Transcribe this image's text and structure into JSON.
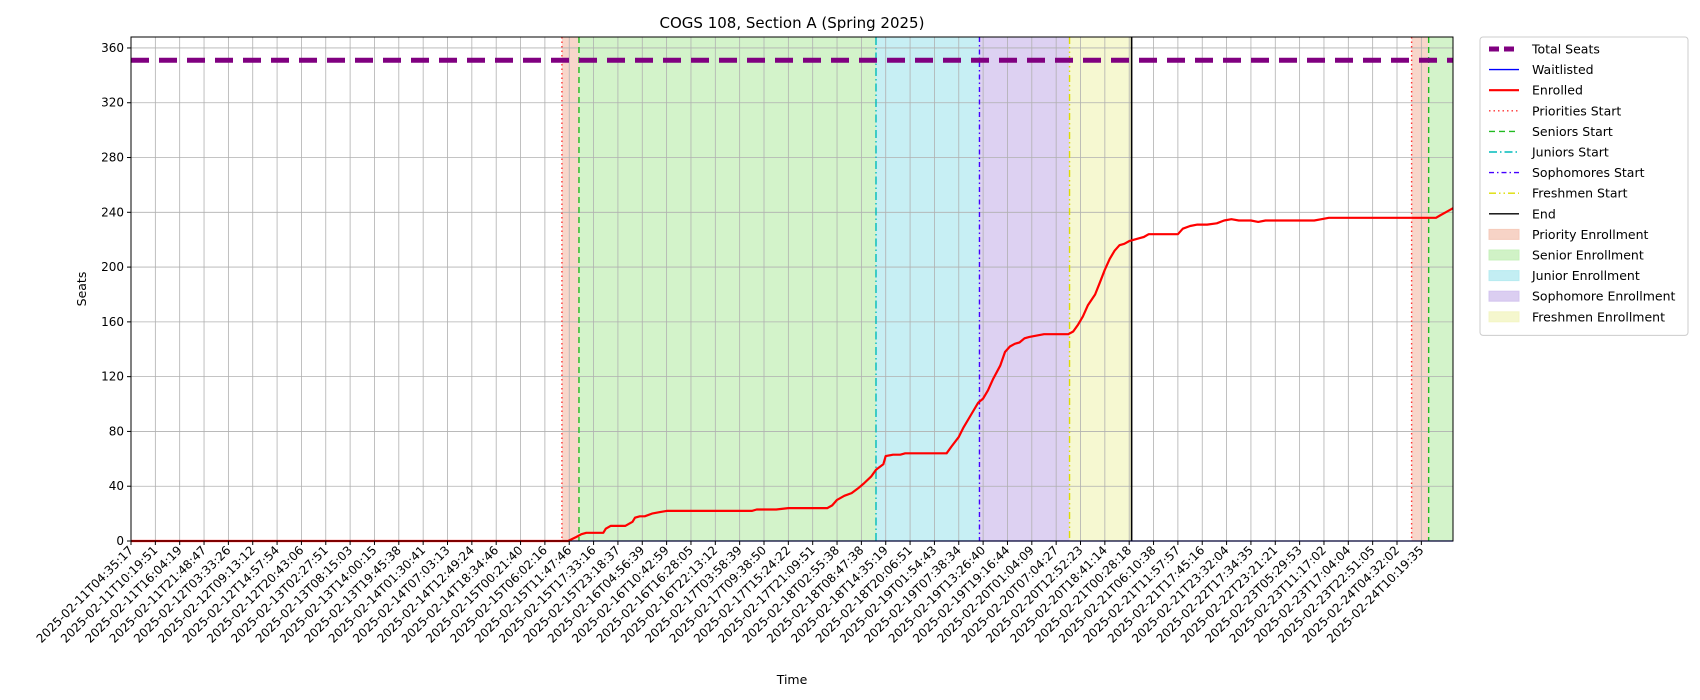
{
  "chart_data": {
    "type": "line",
    "title": "COGS 108, Section A (Spring 2025)",
    "xlabel": "Time",
    "ylabel": "Seats",
    "ylim": [
      0,
      368
    ],
    "yticks": [
      0,
      40,
      80,
      120,
      160,
      200,
      240,
      280,
      320,
      360
    ],
    "grid": true,
    "legend_position": "outside-right",
    "x_tick_labels": [
      "2025-02-11T04:35:17",
      "2025-02-11T10:19:51",
      "2025-02-11T16:04:19",
      "2025-02-11T21:48:47",
      "2025-02-12T03:33:26",
      "2025-02-12T09:13:12",
      "2025-02-12T14:57:54",
      "2025-02-12T20:43:06",
      "2025-02-13T02:27:51",
      "2025-02-13T08:15:03",
      "2025-02-13T14:00:15",
      "2025-02-13T19:45:38",
      "2025-02-14T01:30:41",
      "2025-02-14T07:03:13",
      "2025-02-14T12:49:24",
      "2025-02-14T18:34:46",
      "2025-02-15T00:21:40",
      "2025-02-15T06:02:16",
      "2025-02-15T11:47:46",
      "2025-02-15T17:33:16",
      "2025-02-15T23:18:37",
      "2025-02-16T04:56:39",
      "2025-02-16T10:42:59",
      "2025-02-16T16:28:05",
      "2025-02-16T22:13:12",
      "2025-02-17T03:58:39",
      "2025-02-17T09:38:50",
      "2025-02-17T15:24:22",
      "2025-02-17T21:09:51",
      "2025-02-18T02:55:38",
      "2025-02-18T08:47:38",
      "2025-02-18T14:35:19",
      "2025-02-18T20:06:51",
      "2025-02-19T01:54:43",
      "2025-02-19T07:38:34",
      "2025-02-19T13:26:40",
      "2025-02-19T19:16:44",
      "2025-02-20T01:04:09",
      "2025-02-20T07:04:27",
      "2025-02-20T12:52:23",
      "2025-02-20T18:41:14",
      "2025-02-21T00:28:18",
      "2025-02-21T06:10:38",
      "2025-02-21T11:57:57",
      "2025-02-21T17:45:16",
      "2025-02-21T23:32:04",
      "2025-02-22T17:34:35",
      "2025-02-22T23:21:21",
      "2025-02-23T05:29:53",
      "2025-02-23T11:17:02",
      "2025-02-23T17:04:04",
      "2025-02-23T22:51:05",
      "2025-02-24T04:32:02",
      "2025-02-24T10:19:35"
    ],
    "x_count": 54.3,
    "series": [
      {
        "name": "Total Seats",
        "style": "dashed",
        "color": "#800080",
        "points": [
          [
            0,
            351
          ],
          [
            54.3,
            351
          ]
        ]
      },
      {
        "name": "Waitlisted",
        "style": "solid",
        "color": "#0000ff",
        "points": [
          [
            0,
            0
          ],
          [
            54.3,
            0
          ]
        ]
      },
      {
        "name": "Enrolled",
        "style": "solid",
        "color": "#ff0000",
        "points": [
          [
            0,
            0
          ],
          [
            17.95,
            0
          ],
          [
            18.3,
            3
          ],
          [
            18.5,
            5
          ],
          [
            18.7,
            6
          ],
          [
            19,
            6
          ],
          [
            19.4,
            6
          ],
          [
            19.5,
            9
          ],
          [
            19.7,
            11
          ],
          [
            20,
            11
          ],
          [
            20.3,
            11
          ],
          [
            20.6,
            14
          ],
          [
            20.7,
            17
          ],
          [
            20.9,
            18
          ],
          [
            21.1,
            18
          ],
          [
            21.4,
            20
          ],
          [
            21.7,
            21
          ],
          [
            22,
            22
          ],
          [
            23,
            22
          ],
          [
            24,
            22
          ],
          [
            25,
            22
          ],
          [
            25.5,
            22
          ],
          [
            25.7,
            23
          ],
          [
            26,
            23
          ],
          [
            26.5,
            23
          ],
          [
            27,
            24
          ],
          [
            28,
            24
          ],
          [
            28.6,
            24
          ],
          [
            28.8,
            26
          ],
          [
            29,
            30
          ],
          [
            29.3,
            33
          ],
          [
            29.6,
            35
          ],
          [
            29.9,
            39
          ],
          [
            30.1,
            42
          ],
          [
            30.4,
            47
          ],
          [
            30.6,
            52
          ],
          [
            30.9,
            56
          ],
          [
            31,
            62
          ],
          [
            31.3,
            63
          ],
          [
            31.6,
            63
          ],
          [
            31.8,
            64
          ],
          [
            32.5,
            64
          ],
          [
            33,
            64
          ],
          [
            33.5,
            64
          ],
          [
            33.7,
            69
          ],
          [
            34,
            76
          ],
          [
            34.2,
            83
          ],
          [
            34.5,
            92
          ],
          [
            34.8,
            101
          ],
          [
            35,
            104
          ],
          [
            35.2,
            110
          ],
          [
            35.4,
            118
          ],
          [
            35.7,
            128
          ],
          [
            35.9,
            138
          ],
          [
            36.1,
            142
          ],
          [
            36.3,
            144
          ],
          [
            36.5,
            145
          ],
          [
            36.7,
            148
          ],
          [
            36.9,
            149
          ],
          [
            37.2,
            150
          ],
          [
            37.5,
            151
          ],
          [
            38,
            151
          ],
          [
            38.5,
            151
          ],
          [
            38.7,
            153
          ],
          [
            38.9,
            158
          ],
          [
            39.1,
            164
          ],
          [
            39.3,
            172
          ],
          [
            39.6,
            180
          ],
          [
            39.8,
            189
          ],
          [
            40,
            198
          ],
          [
            40.2,
            206
          ],
          [
            40.4,
            212
          ],
          [
            40.6,
            216
          ],
          [
            40.8,
            217
          ],
          [
            41,
            219
          ],
          [
            41.2,
            220
          ],
          [
            41.4,
            221
          ],
          [
            41.6,
            222
          ],
          [
            41.8,
            224
          ],
          [
            42.1,
            224
          ],
          [
            42.5,
            224
          ],
          [
            42.8,
            224
          ],
          [
            43,
            224
          ],
          [
            43.2,
            228
          ],
          [
            43.5,
            230
          ],
          [
            43.8,
            231
          ],
          [
            44.2,
            231
          ],
          [
            44.6,
            232
          ],
          [
            44.9,
            234
          ],
          [
            45.2,
            235
          ],
          [
            45.5,
            234
          ],
          [
            45.8,
            234
          ],
          [
            46,
            234
          ],
          [
            46.3,
            233
          ],
          [
            46.6,
            234
          ],
          [
            47,
            234
          ],
          [
            48,
            234
          ],
          [
            48.6,
            234
          ],
          [
            48.9,
            235
          ],
          [
            49.2,
            236
          ],
          [
            50,
            236
          ],
          [
            51,
            236
          ],
          [
            52,
            236
          ],
          [
            53,
            236
          ],
          [
            53.6,
            236
          ],
          [
            53.8,
            238
          ],
          [
            54,
            240
          ],
          [
            54.3,
            243
          ]
        ]
      }
    ],
    "vertical_lines": [
      {
        "name": "Priorities Start",
        "x": 17.7,
        "color": "#ff3333",
        "style": "dotted"
      },
      {
        "name": "Seniors Start",
        "x": 18.4,
        "color": "#22bb22",
        "style": "dashed"
      },
      {
        "name": "Juniors Start",
        "x": 30.6,
        "color": "#00bbbb",
        "style": "dashdot"
      },
      {
        "name": "Sophomores Start",
        "x": 34.85,
        "color": "#4400ff",
        "style": "densedashdot"
      },
      {
        "name": "Freshmen Start",
        "x": 38.55,
        "color": "#dddd00",
        "style": "dashdotdot"
      },
      {
        "name": "End",
        "x": 41.1,
        "color": "#000000",
        "style": "solid"
      },
      {
        "name": "Priorities Start",
        "x": 52.6,
        "color": "#ff3333",
        "style": "dotted"
      },
      {
        "name": "Seniors Start",
        "x": 53.3,
        "color": "#22bb22",
        "style": "dashed"
      }
    ],
    "shaded_regions": [
      {
        "name": "Priority Enrollment",
        "x0": 17.7,
        "x1": 18.4,
        "color": "#f5c8b8"
      },
      {
        "name": "Senior Enrollment",
        "x0": 18.4,
        "x1": 30.6,
        "color": "#c4efb8"
      },
      {
        "name": "Junior Enrollment",
        "x0": 30.6,
        "x1": 34.85,
        "color": "#b4eaf0"
      },
      {
        "name": "Sophomore Enrollment",
        "x0": 34.85,
        "x1": 38.55,
        "color": "#d2c2ee"
      },
      {
        "name": "Freshmen Enrollment",
        "x0": 38.55,
        "x1": 41.1,
        "color": "#f3f5c2"
      },
      {
        "name": "Priority Enrollment",
        "x0": 52.6,
        "x1": 53.3,
        "color": "#f5c8b8"
      },
      {
        "name": "Senior Enrollment",
        "x0": 53.3,
        "x1": 54.3,
        "color": "#c4efb8"
      }
    ],
    "legend": [
      {
        "label": "Total Seats",
        "kind": "line",
        "color": "#800080",
        "style": "dashed-thick"
      },
      {
        "label": "Waitlisted",
        "kind": "line",
        "color": "#0000ff",
        "style": "solid"
      },
      {
        "label": "Enrolled",
        "kind": "line",
        "color": "#ff0000",
        "style": "solid-thick"
      },
      {
        "label": "Priorities Start",
        "kind": "line",
        "color": "#ff3333",
        "style": "dotted"
      },
      {
        "label": "Seniors Start",
        "kind": "line",
        "color": "#22bb22",
        "style": "dashed"
      },
      {
        "label": "Juniors Start",
        "kind": "line",
        "color": "#00bbbb",
        "style": "dashdot"
      },
      {
        "label": "Sophomores Start",
        "kind": "line",
        "color": "#4400ff",
        "style": "densedashdot"
      },
      {
        "label": "Freshmen Start",
        "kind": "line",
        "color": "#dddd00",
        "style": "dashdotdot"
      },
      {
        "label": "End",
        "kind": "line",
        "color": "#000000",
        "style": "solid"
      },
      {
        "label": "Priority Enrollment",
        "kind": "patch",
        "color": "#f5c8b8"
      },
      {
        "label": "Senior Enrollment",
        "kind": "patch",
        "color": "#c4efb8"
      },
      {
        "label": "Junior Enrollment",
        "kind": "patch",
        "color": "#b4eaf0"
      },
      {
        "label": "Sophomore Enrollment",
        "kind": "patch",
        "color": "#d2c2ee"
      },
      {
        "label": "Freshmen Enrollment",
        "kind": "patch",
        "color": "#f3f5c2"
      }
    ]
  }
}
